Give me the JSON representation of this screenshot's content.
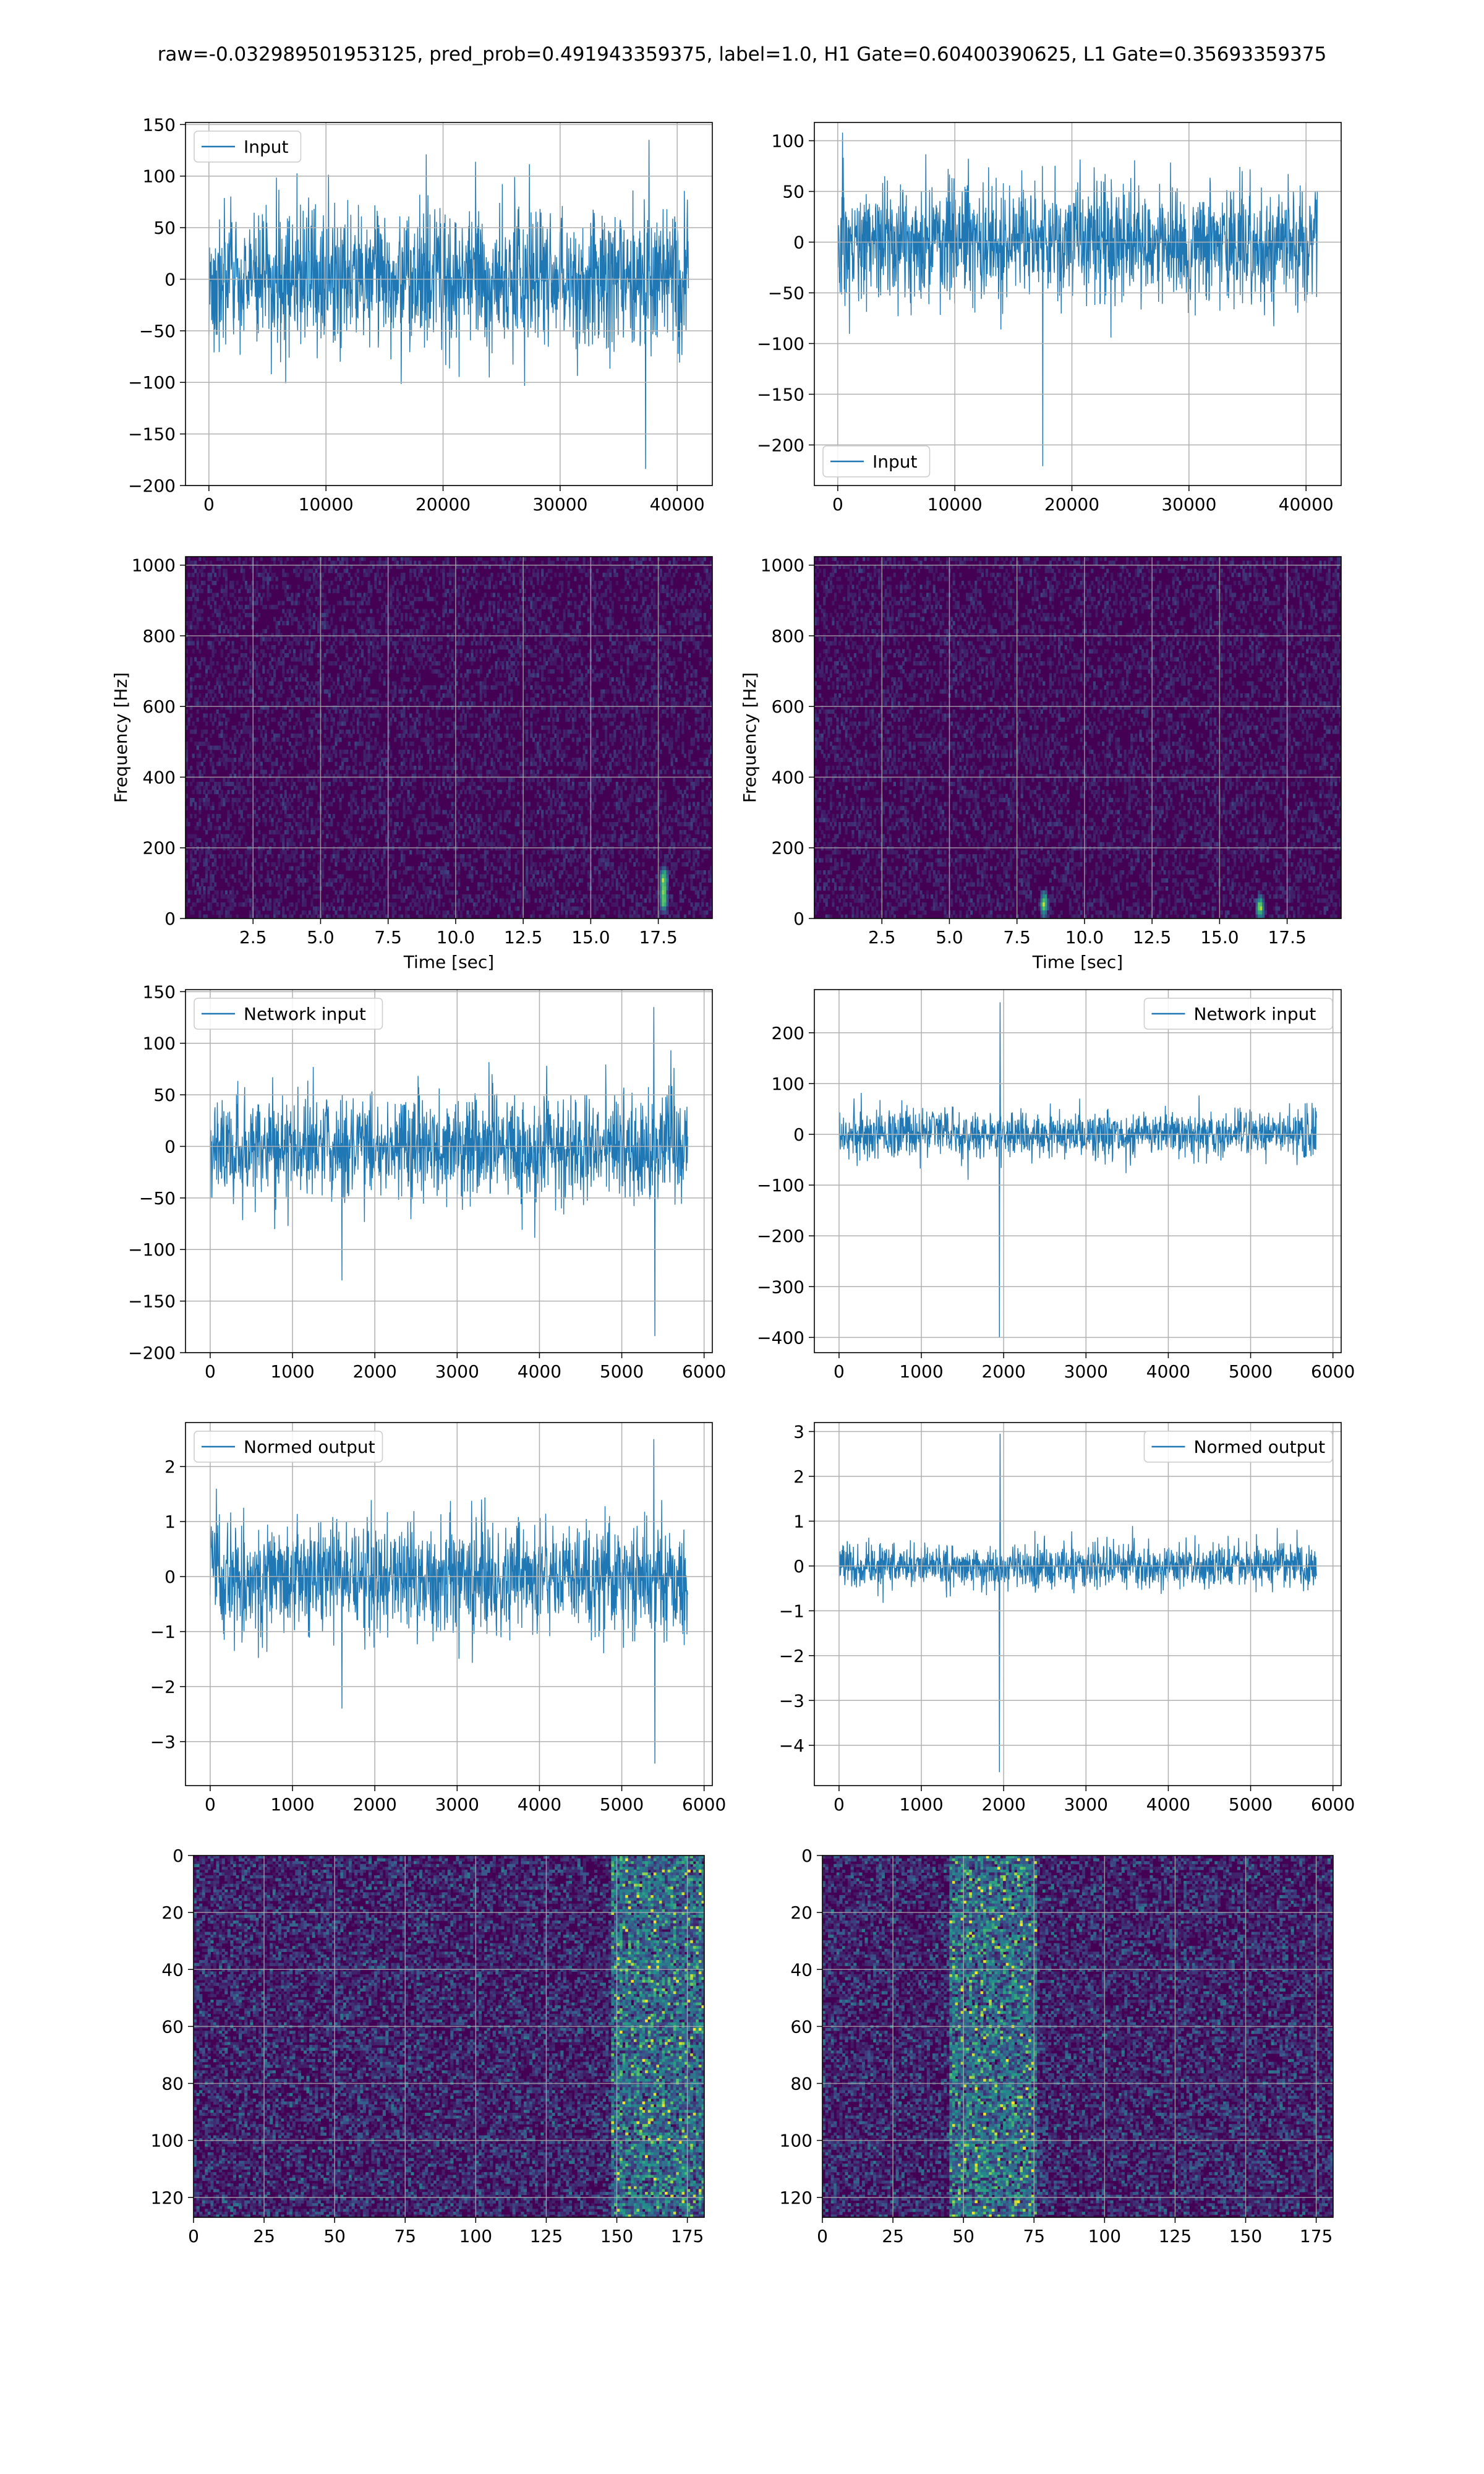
{
  "suptitle": "raw=-0.032989501953125, pred_prob=0.491943359375, label=1.0, H1 Gate=0.60400390625, L1 Gate=0.35693359375",
  "colors": {
    "line": "#1f77b4",
    "grid": "#b0b0b0",
    "heat_low": "#440154",
    "heat_mid": "#21918c",
    "heat_high": "#fde725"
  },
  "chart_data": [
    {
      "id": "h1-input",
      "type": "line",
      "legend_placement": "upper-left",
      "grid": true,
      "series": [
        {
          "name": "Input",
          "n_points": 40960,
          "noise_amplitude": 80,
          "extremes": [
            {
              "x": 37300,
              "y": -184
            },
            {
              "x": 37600,
              "y": 135
            }
          ]
        }
      ],
      "xlim": [
        -2000,
        43000
      ],
      "ylim": [
        -200,
        152
      ],
      "xticks": [
        0,
        10000,
        20000,
        30000,
        40000
      ],
      "yticks": [
        -200,
        -150,
        -100,
        -50,
        0,
        50,
        100,
        150
      ],
      "xtick_labels": [
        "0",
        "10000",
        "20000",
        "30000",
        "40000"
      ],
      "ytick_labels": [
        "−200",
        "−150",
        "−100",
        "−50",
        "0",
        "50",
        "100",
        "150"
      ]
    },
    {
      "id": "l1-input",
      "type": "line",
      "legend_placement": "lower-left",
      "grid": true,
      "series": [
        {
          "name": "Input",
          "n_points": 40960,
          "noise_amplitude": 70,
          "extremes": [
            {
              "x": 17500,
              "y": -221
            },
            {
              "x": 400,
              "y": 108
            }
          ]
        }
      ],
      "xlim": [
        -2000,
        43000
      ],
      "ylim": [
        -240,
        118
      ],
      "xticks": [
        0,
        10000,
        20000,
        30000,
        40000
      ],
      "yticks": [
        -200,
        -150,
        -100,
        -50,
        0,
        50,
        100
      ],
      "xtick_labels": [
        "0",
        "10000",
        "20000",
        "30000",
        "40000"
      ],
      "ytick_labels": [
        "−200",
        "−150",
        "−100",
        "−50",
        "0",
        "50",
        "100"
      ]
    },
    {
      "id": "h1-spectrogram",
      "type": "heatmap",
      "grid": true,
      "xlabel": "Time [sec]",
      "ylabel": "Frequency [Hz]",
      "xlim": [
        0,
        19.5
      ],
      "ylim": [
        0,
        1024
      ],
      "xticks": [
        2.5,
        5.0,
        7.5,
        10.0,
        12.5,
        15.0,
        17.5
      ],
      "yticks": [
        0,
        200,
        400,
        600,
        800,
        1000
      ],
      "xtick_labels": [
        "2.5",
        "5.0",
        "7.5",
        "10.0",
        "12.5",
        "15.0",
        "17.5"
      ],
      "ytick_labels": [
        "0",
        "200",
        "400",
        "600",
        "800",
        "1000"
      ],
      "hotspots": [
        {
          "x": 17.7,
          "y": 55
        },
        {
          "x": 17.7,
          "y": 110
        }
      ]
    },
    {
      "id": "l1-spectrogram",
      "type": "heatmap",
      "grid": true,
      "xlabel": "Time [sec]",
      "ylabel": "Frequency [Hz]",
      "xlim": [
        0,
        19.5
      ],
      "ylim": [
        0,
        1024
      ],
      "xticks": [
        2.5,
        5.0,
        7.5,
        10.0,
        12.5,
        15.0,
        17.5
      ],
      "yticks": [
        0,
        200,
        400,
        600,
        800,
        1000
      ],
      "xtick_labels": [
        "2.5",
        "5.0",
        "7.5",
        "10.0",
        "12.5",
        "15.0",
        "17.5"
      ],
      "ytick_labels": [
        "0",
        "200",
        "400",
        "600",
        "800",
        "1000"
      ],
      "hotspots": [
        {
          "x": 8.5,
          "y": 40
        },
        {
          "x": 16.5,
          "y": 30
        }
      ]
    },
    {
      "id": "h1-network-input",
      "type": "line",
      "legend_placement": "upper-left",
      "grid": true,
      "series": [
        {
          "name": "Network input",
          "n_points": 5800,
          "noise_amplitude": 60,
          "extremes": [
            {
              "x": 5400,
              "y": -184
            },
            {
              "x": 5390,
              "y": 135
            },
            {
              "x": 1600,
              "y": -130
            }
          ]
        }
      ],
      "xlim": [
        -300,
        6100
      ],
      "ylim": [
        -200,
        152
      ],
      "xticks": [
        0,
        1000,
        2000,
        3000,
        4000,
        5000,
        6000
      ],
      "yticks": [
        -200,
        -150,
        -100,
        -50,
        0,
        50,
        100,
        150
      ],
      "xtick_labels": [
        "0",
        "1000",
        "2000",
        "3000",
        "4000",
        "5000",
        "6000"
      ],
      "ytick_labels": [
        "−200",
        "−150",
        "−100",
        "−50",
        "0",
        "50",
        "100",
        "150"
      ]
    },
    {
      "id": "l1-network-input",
      "type": "line",
      "legend_placement": "upper-right",
      "grid": true,
      "series": [
        {
          "name": "Network input",
          "n_points": 5800,
          "noise_amplitude": 55,
          "extremes": [
            {
              "x": 1950,
              "y": -400
            },
            {
              "x": 1955,
              "y": 260
            }
          ]
        }
      ],
      "xlim": [
        -300,
        6100
      ],
      "ylim": [
        -430,
        285
      ],
      "xticks": [
        0,
        1000,
        2000,
        3000,
        4000,
        5000,
        6000
      ],
      "yticks": [
        -400,
        -300,
        -200,
        -100,
        0,
        100,
        200
      ],
      "xtick_labels": [
        "0",
        "1000",
        "2000",
        "3000",
        "4000",
        "5000",
        "6000"
      ],
      "ytick_labels": [
        "−400",
        "−300",
        "−200",
        "−100",
        "0",
        "100",
        "200"
      ]
    },
    {
      "id": "h1-normed-output",
      "type": "line",
      "legend_placement": "upper-left",
      "grid": true,
      "series": [
        {
          "name": "Normed output",
          "n_points": 5800,
          "noise_amplitude": 1.2,
          "extremes": [
            {
              "x": 5400,
              "y": -3.4
            },
            {
              "x": 5390,
              "y": 2.5
            },
            {
              "x": 1600,
              "y": -2.4
            }
          ]
        }
      ],
      "xlim": [
        -300,
        6100
      ],
      "ylim": [
        -3.8,
        2.8
      ],
      "xticks": [
        0,
        1000,
        2000,
        3000,
        4000,
        5000,
        6000
      ],
      "yticks": [
        -3,
        -2,
        -1,
        0,
        1,
        2
      ],
      "xtick_labels": [
        "0",
        "1000",
        "2000",
        "3000",
        "4000",
        "5000",
        "6000"
      ],
      "ytick_labels": [
        "−3",
        "−2",
        "−1",
        "0",
        "1",
        "2"
      ]
    },
    {
      "id": "l1-normed-output",
      "type": "line",
      "legend_placement": "upper-right",
      "grid": true,
      "series": [
        {
          "name": "Normed output",
          "n_points": 5800,
          "noise_amplitude": 0.6,
          "extremes": [
            {
              "x": 1950,
              "y": -4.6
            },
            {
              "x": 1955,
              "y": 2.95
            }
          ]
        }
      ],
      "xlim": [
        -300,
        6100
      ],
      "ylim": [
        -4.9,
        3.2
      ],
      "xticks": [
        0,
        1000,
        2000,
        3000,
        4000,
        5000,
        6000
      ],
      "yticks": [
        -4,
        -3,
        -2,
        -1,
        0,
        1,
        2,
        3
      ],
      "xtick_labels": [
        "0",
        "1000",
        "2000",
        "3000",
        "4000",
        "5000",
        "6000"
      ],
      "ytick_labels": [
        "−4",
        "−3",
        "−2",
        "−1",
        "0",
        "1",
        "2",
        "3"
      ]
    },
    {
      "id": "h1-feature-map",
      "type": "heatmap",
      "grid": true,
      "xlim": [
        0,
        181
      ],
      "ylim": [
        127,
        0
      ],
      "y_inverted": true,
      "xticks": [
        0,
        25,
        50,
        75,
        100,
        125,
        150,
        175
      ],
      "yticks": [
        0,
        20,
        40,
        60,
        80,
        100,
        120
      ],
      "xtick_labels": [
        "0",
        "25",
        "50",
        "75",
        "100",
        "125",
        "150",
        "175"
      ],
      "ytick_labels": [
        "0",
        "20",
        "40",
        "60",
        "80",
        "100",
        "120"
      ],
      "active_band": [
        148,
        181
      ]
    },
    {
      "id": "l1-feature-map",
      "type": "heatmap",
      "grid": true,
      "xlim": [
        0,
        181
      ],
      "ylim": [
        127,
        0
      ],
      "y_inverted": true,
      "xticks": [
        0,
        25,
        50,
        75,
        100,
        125,
        150,
        175
      ],
      "yticks": [
        0,
        20,
        40,
        60,
        80,
        100,
        120
      ],
      "xtick_labels": [
        "0",
        "25",
        "50",
        "75",
        "100",
        "125",
        "150",
        "175"
      ],
      "ytick_labels": [
        "0",
        "20",
        "40",
        "60",
        "80",
        "100",
        "120"
      ],
      "active_band": [
        45,
        75
      ]
    }
  ]
}
